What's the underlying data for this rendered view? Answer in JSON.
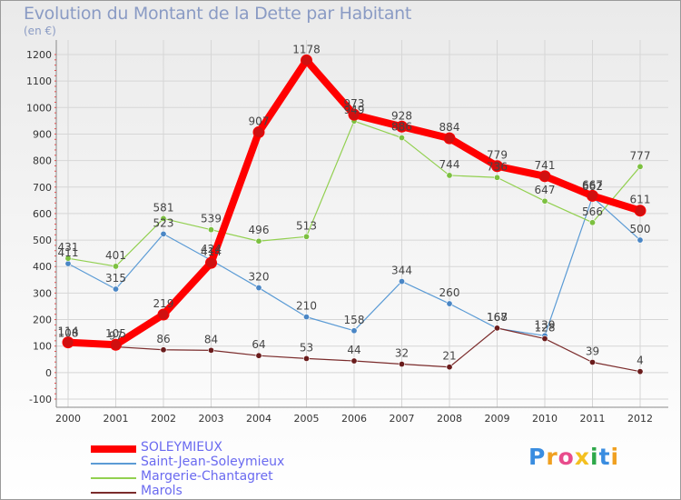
{
  "header": {
    "title": "Evolution du Montant de la Dette par Habitant",
    "unit": "(en €)"
  },
  "brand": {
    "letters": [
      {
        "ch": "P",
        "color": "#3a8de0"
      },
      {
        "ch": "r",
        "color": "#f0a020"
      },
      {
        "ch": "o",
        "color": "#e84c8c"
      },
      {
        "ch": "x",
        "color": "#f4c020"
      },
      {
        "ch": "i",
        "color": "#2ea84a"
      },
      {
        "ch": "t",
        "color": "#3a8de0"
      },
      {
        "ch": "i",
        "color": "#f0a020"
      }
    ]
  },
  "chart_data": {
    "type": "line",
    "title": "Evolution du Montant de la Dette par Habitant",
    "ylabel": "(en €)",
    "xlabel": "",
    "x": [
      "2000",
      "2001",
      "2002",
      "2003",
      "2004",
      "2005",
      "2006",
      "2007",
      "2008",
      "2009",
      "2010",
      "2011",
      "2012"
    ],
    "yticks": [
      "-100",
      "0",
      "100",
      "200",
      "300",
      "400",
      "500",
      "600",
      "700",
      "800",
      "900",
      "1000",
      "1100",
      "1200"
    ],
    "ylim": [
      -100,
      1200
    ],
    "grid": true,
    "legend_position": "bottom-left",
    "series": [
      {
        "name": "SOLEYMIEUX",
        "color": "#ff0000",
        "marker_color": "#d01010",
        "thick": true,
        "values": [
          114,
          105,
          219,
          414,
          907,
          1178,
          973,
          928,
          884,
          779,
          741,
          667,
          611
        ]
      },
      {
        "name": "Saint-Jean-Soleymieux",
        "color": "#5b9bd5",
        "marker_color": "#4a86c5",
        "thick": false,
        "values": [
          411,
          315,
          523,
          424,
          320,
          210,
          158,
          344,
          260,
          167,
          139,
          662,
          500
        ]
      },
      {
        "name": "Margerie-Chantagret",
        "color": "#92d050",
        "marker_color": "#7cc040",
        "thick": false,
        "values": [
          431,
          401,
          581,
          539,
          496,
          513,
          949,
          886,
          744,
          736,
          647,
          566,
          777
        ]
      },
      {
        "name": "Marols",
        "color": "#7b2c2c",
        "marker_color": "#6a1c1c",
        "thick": false,
        "values": [
          108,
          97,
          86,
          84,
          64,
          53,
          44,
          32,
          21,
          168,
          128,
          39,
          4
        ]
      }
    ]
  }
}
